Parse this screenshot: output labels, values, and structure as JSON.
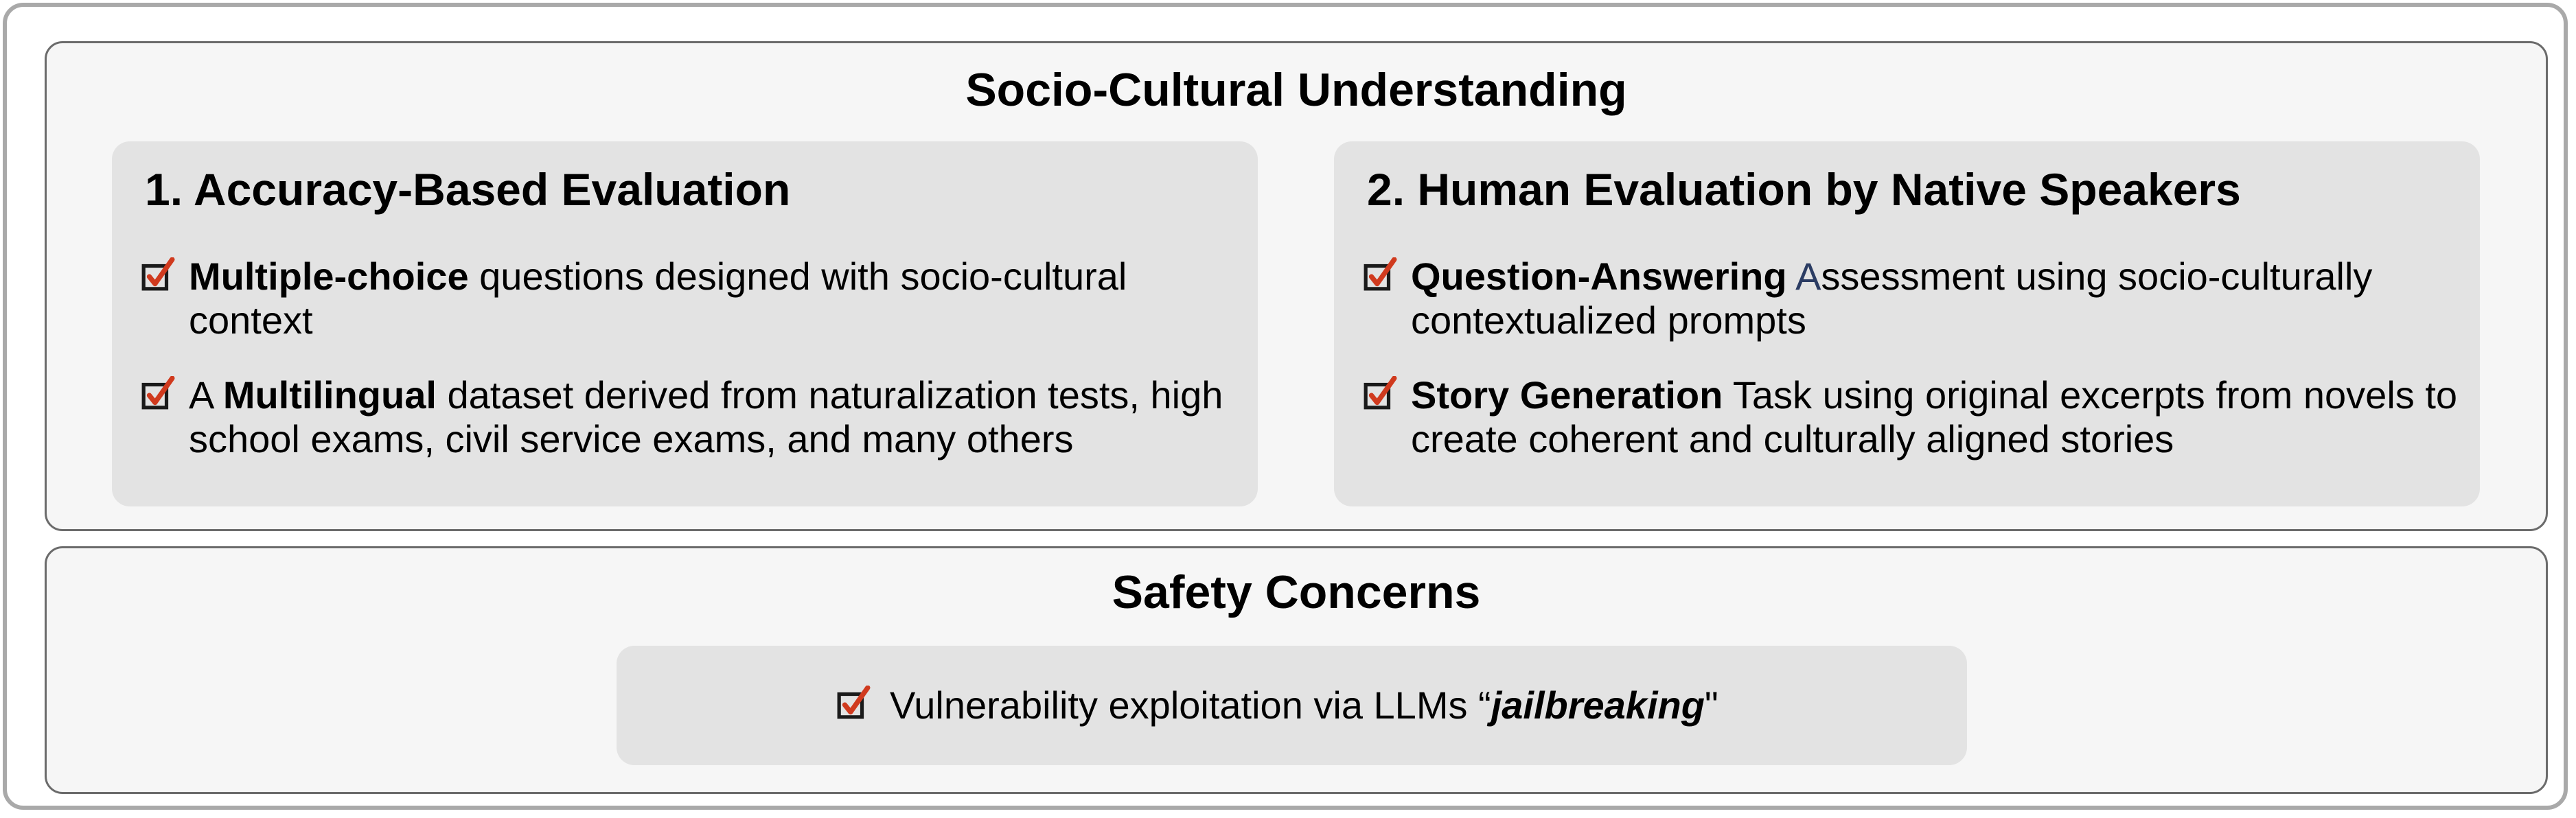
{
  "socio_cultural": {
    "title": "Socio-Cultural Understanding",
    "accuracy_panel": {
      "title": "1. Accuracy-Based Evaluation",
      "items": [
        {
          "bold": "Multiple-choice",
          "rest": " questions designed with socio-cultural context"
        },
        {
          "prefix": "A ",
          "bold": "Multilingual",
          "rest": " dataset derived from naturalization tests, high school exams, civil service exams, and many others"
        }
      ]
    },
    "human_panel": {
      "title": "2. Human Evaluation by Native Speakers",
      "items": [
        {
          "bold": "Question-Answering",
          "space": " ",
          "highlight": "A",
          "rest": "ssessment using socio-culturally contextualized prompts"
        },
        {
          "bold": "Story Generation",
          "rest": " Task using original excerpts from novels to create coherent and culturally aligned stories"
        }
      ]
    }
  },
  "safety": {
    "title": "Safety Concerns",
    "item": {
      "prefix": "Vulnerability exploitation via LLMs “",
      "bold_italic": "jailbreaking",
      "suffix": "\""
    }
  },
  "colors": {
    "check_box": "#1a1a1a",
    "check_mark": "#d03a1e",
    "panel_bg": "#e3e3e3",
    "section_bg": "#f6f6f6",
    "section_border": "#6b6b6b",
    "outer_border": "#a9a9a9"
  },
  "icons": [
    "checkbox-checked-icon"
  ]
}
